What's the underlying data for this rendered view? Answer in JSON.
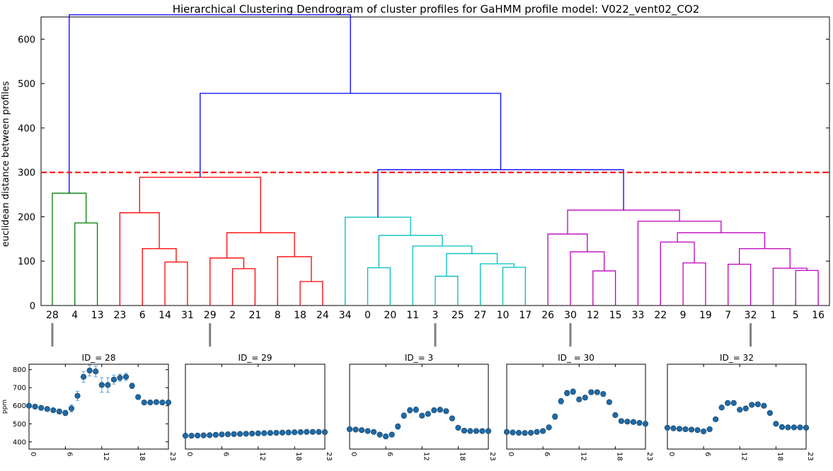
{
  "chart_data": [
    {
      "type": "dendrogram",
      "title": "Hierarchical Clustering Dendrogram of cluster profiles for GaHMM profile model:  V022_vent02_CO2",
      "ylabel": "euclidean distance between profiles",
      "ylim": [
        0,
        650
      ],
      "yticks": [
        0,
        100,
        200,
        300,
        400,
        500,
        600
      ],
      "leaf_order": [
        "28",
        "4",
        "13",
        "23",
        "6",
        "14",
        "31",
        "29",
        "2",
        "21",
        "8",
        "18",
        "24",
        "34",
        "0",
        "20",
        "11",
        "3",
        "25",
        "27",
        "10",
        "17",
        "26",
        "30",
        "12",
        "15",
        "33",
        "22",
        "9",
        "19",
        "7",
        "32",
        "1",
        "5",
        "16"
      ],
      "cut_threshold": 300,
      "cut_line_color": "#ff0000",
      "link_color_default": "#0000ff",
      "clusters": [
        {
          "color": "#008000",
          "leaves": [
            "28",
            "4",
            "13"
          ]
        },
        {
          "color": "#ff0000",
          "leaves": [
            "23",
            "6",
            "14",
            "31",
            "29",
            "2",
            "21",
            "8",
            "18",
            "24"
          ]
        },
        {
          "color": "#00bfbf",
          "leaves": [
            "34",
            "0",
            "20",
            "11",
            "3",
            "25",
            "27",
            "10",
            "17"
          ]
        },
        {
          "color": "#bf00bf",
          "leaves": [
            "26",
            "30",
            "12",
            "15",
            "33",
            "22",
            "9",
            "19",
            "7",
            "32",
            "1",
            "5",
            "16"
          ]
        }
      ],
      "merges": [
        {
          "a": "L:4",
          "b": "L:13",
          "h": 186,
          "color": "#008000"
        },
        {
          "a": "L:28",
          "b": "M:0",
          "h": 253,
          "color": "#008000"
        },
        {
          "a": "L:14",
          "b": "L:31",
          "h": 98,
          "color": "#ff0000"
        },
        {
          "a": "L:6",
          "b": "M:2",
          "h": 128,
          "color": "#ff0000"
        },
        {
          "a": "L:23",
          "b": "M:3",
          "h": 209,
          "color": "#ff0000"
        },
        {
          "a": "L:2",
          "b": "L:21",
          "h": 83,
          "color": "#ff0000"
        },
        {
          "a": "L:29",
          "b": "M:5",
          "h": 107,
          "color": "#ff0000"
        },
        {
          "a": "L:18",
          "b": "L:24",
          "h": 54,
          "color": "#ff0000"
        },
        {
          "a": "L:8",
          "b": "M:7",
          "h": 110,
          "color": "#ff0000"
        },
        {
          "a": "M:6",
          "b": "M:8",
          "h": 164,
          "color": "#ff0000"
        },
        {
          "a": "M:4",
          "b": "M:9",
          "h": 289,
          "color": "#ff0000"
        },
        {
          "a": "L:0",
          "b": "L:20",
          "h": 85,
          "color": "#00bfbf"
        },
        {
          "a": "L:3",
          "b": "L:25",
          "h": 66,
          "color": "#00bfbf"
        },
        {
          "a": "L:10",
          "b": "L:17",
          "h": 86,
          "color": "#00bfbf"
        },
        {
          "a": "L:27",
          "b": "M:13",
          "h": 94,
          "color": "#00bfbf"
        },
        {
          "a": "M:12",
          "b": "M:14",
          "h": 117,
          "color": "#00bfbf"
        },
        {
          "a": "L:11",
          "b": "M:15",
          "h": 134,
          "color": "#00bfbf"
        },
        {
          "a": "M:11",
          "b": "M:16",
          "h": 158,
          "color": "#00bfbf"
        },
        {
          "a": "L:34",
          "b": "M:17",
          "h": 199,
          "color": "#00bfbf"
        },
        {
          "a": "L:12",
          "b": "L:15",
          "h": 78,
          "color": "#bf00bf"
        },
        {
          "a": "L:30",
          "b": "M:19",
          "h": 121,
          "color": "#bf00bf"
        },
        {
          "a": "L:26",
          "b": "M:20",
          "h": 161,
          "color": "#bf00bf"
        },
        {
          "a": "L:9",
          "b": "L:19",
          "h": 96,
          "color": "#bf00bf"
        },
        {
          "a": "L:22",
          "b": "M:22",
          "h": 143,
          "color": "#bf00bf"
        },
        {
          "a": "L:7",
          "b": "L:32",
          "h": 93,
          "color": "#bf00bf"
        },
        {
          "a": "L:5",
          "b": "L:16",
          "h": 79,
          "color": "#bf00bf"
        },
        {
          "a": "L:1",
          "b": "M:25",
          "h": 84,
          "color": "#bf00bf"
        },
        {
          "a": "M:24",
          "b": "M:26",
          "h": 128,
          "color": "#bf00bf"
        },
        {
          "a": "M:23",
          "b": "M:27",
          "h": 164,
          "color": "#bf00bf"
        },
        {
          "a": "L:33",
          "b": "M:28",
          "h": 190,
          "color": "#bf00bf"
        },
        {
          "a": "M:21",
          "b": "M:29",
          "h": 215,
          "color": "#bf00bf"
        },
        {
          "a": "M:18",
          "b": "M:30",
          "h": 306,
          "color": "#0000ff"
        },
        {
          "a": "M:10",
          "b": "M:31",
          "h": 478,
          "color": "#0000ff"
        },
        {
          "a": "M:1",
          "b": "M:32",
          "h": 655,
          "color": "#0000ff"
        }
      ],
      "profile_leaves": [
        "28",
        "29",
        "3",
        "30",
        "32"
      ]
    },
    {
      "type": "scatter",
      "title": "ID_= 28",
      "ylabel": "ppm",
      "ylim": [
        360,
        830
      ],
      "yticks": [
        400,
        500,
        600,
        700,
        800
      ],
      "xlim": [
        0,
        23
      ],
      "xticks": [
        0,
        6,
        12,
        18,
        23
      ],
      "x": [
        0,
        1,
        2,
        3,
        4,
        5,
        6,
        7,
        8,
        9,
        10,
        11,
        12,
        13,
        14,
        15,
        16,
        17,
        18,
        19,
        20,
        21,
        22,
        23
      ],
      "y": [
        600,
        595,
        588,
        582,
        575,
        568,
        560,
        585,
        655,
        760,
        795,
        790,
        715,
        715,
        745,
        755,
        760,
        710,
        648,
        618,
        618,
        620,
        618,
        618
      ],
      "err": [
        10,
        10,
        10,
        10,
        10,
        12,
        15,
        20,
        25,
        30,
        30,
        30,
        40,
        40,
        25,
        20,
        20,
        15,
        12,
        10,
        10,
        10,
        10,
        10
      ],
      "marker_color": "#1f6aa5"
    },
    {
      "type": "scatter",
      "title": "ID_= 29",
      "ylim": [
        360,
        830
      ],
      "xlim": [
        0,
        23
      ],
      "xticks": [
        0,
        6,
        12,
        18,
        23
      ],
      "x": [
        0,
        1,
        2,
        3,
        4,
        5,
        6,
        7,
        8,
        9,
        10,
        11,
        12,
        13,
        14,
        15,
        16,
        17,
        18,
        19,
        20,
        21,
        22,
        23
      ],
      "y": [
        434,
        434,
        435,
        436,
        437,
        439,
        441,
        442,
        443,
        444,
        445,
        446,
        447,
        448,
        449,
        450,
        451,
        452,
        453,
        454,
        455,
        455,
        455,
        454
      ],
      "err": [
        5,
        5,
        5,
        5,
        5,
        5,
        5,
        5,
        5,
        5,
        6,
        6,
        6,
        6,
        6,
        6,
        6,
        6,
        7,
        7,
        7,
        7,
        7,
        7
      ],
      "marker_color": "#1f6aa5"
    },
    {
      "type": "scatter",
      "title": "ID_= 3",
      "ylim": [
        360,
        830
      ],
      "xlim": [
        0,
        23
      ],
      "xticks": [
        0,
        6,
        12,
        18,
        23
      ],
      "x": [
        0,
        1,
        2,
        3,
        4,
        5,
        6,
        7,
        8,
        9,
        10,
        11,
        12,
        13,
        14,
        15,
        16,
        17,
        18,
        19,
        20,
        21,
        22,
        23
      ],
      "y": [
        470,
        468,
        465,
        460,
        455,
        440,
        430,
        440,
        485,
        545,
        575,
        578,
        545,
        555,
        575,
        578,
        570,
        530,
        478,
        462,
        460,
        460,
        460,
        460
      ],
      "err": [
        8,
        8,
        8,
        8,
        8,
        10,
        12,
        12,
        15,
        15,
        15,
        15,
        12,
        12,
        12,
        12,
        12,
        12,
        10,
        8,
        8,
        8,
        8,
        8
      ],
      "marker_color": "#1f6aa5"
    },
    {
      "type": "scatter",
      "title": "ID_ = 30",
      "ylim": [
        360,
        830
      ],
      "xlim": [
        0,
        23
      ],
      "xticks": [
        0,
        6,
        12,
        18,
        23
      ],
      "x": [
        0,
        1,
        2,
        3,
        4,
        5,
        6,
        7,
        8,
        9,
        10,
        11,
        12,
        13,
        14,
        15,
        16,
        17,
        18,
        19,
        20,
        21,
        22,
        23
      ],
      "y": [
        455,
        452,
        450,
        449,
        450,
        455,
        460,
        480,
        540,
        625,
        670,
        678,
        635,
        645,
        675,
        675,
        665,
        620,
        548,
        515,
        512,
        510,
        505,
        500
      ],
      "err": [
        10,
        10,
        10,
        10,
        10,
        10,
        12,
        12,
        15,
        15,
        15,
        15,
        12,
        12,
        12,
        12,
        12,
        12,
        10,
        8,
        8,
        8,
        8,
        8
      ],
      "marker_color": "#1f6aa5"
    },
    {
      "type": "scatter",
      "title": "ID_= 32",
      "ylim": [
        360,
        830
      ],
      "xlim": [
        0,
        23
      ],
      "xticks": [
        0,
        6,
        12,
        18,
        23
      ],
      "x": [
        0,
        1,
        2,
        3,
        4,
        5,
        6,
        7,
        8,
        9,
        10,
        11,
        12,
        13,
        14,
        15,
        16,
        17,
        18,
        19,
        20,
        21,
        22,
        23
      ],
      "y": [
        478,
        475,
        472,
        470,
        468,
        465,
        458,
        470,
        525,
        590,
        615,
        615,
        578,
        585,
        605,
        608,
        600,
        560,
        500,
        482,
        480,
        480,
        480,
        478
      ],
      "err": [
        8,
        8,
        8,
        8,
        8,
        8,
        10,
        10,
        12,
        12,
        12,
        12,
        10,
        10,
        10,
        10,
        10,
        10,
        8,
        8,
        8,
        8,
        8,
        8
      ],
      "marker_color": "#1f6aa5"
    }
  ]
}
